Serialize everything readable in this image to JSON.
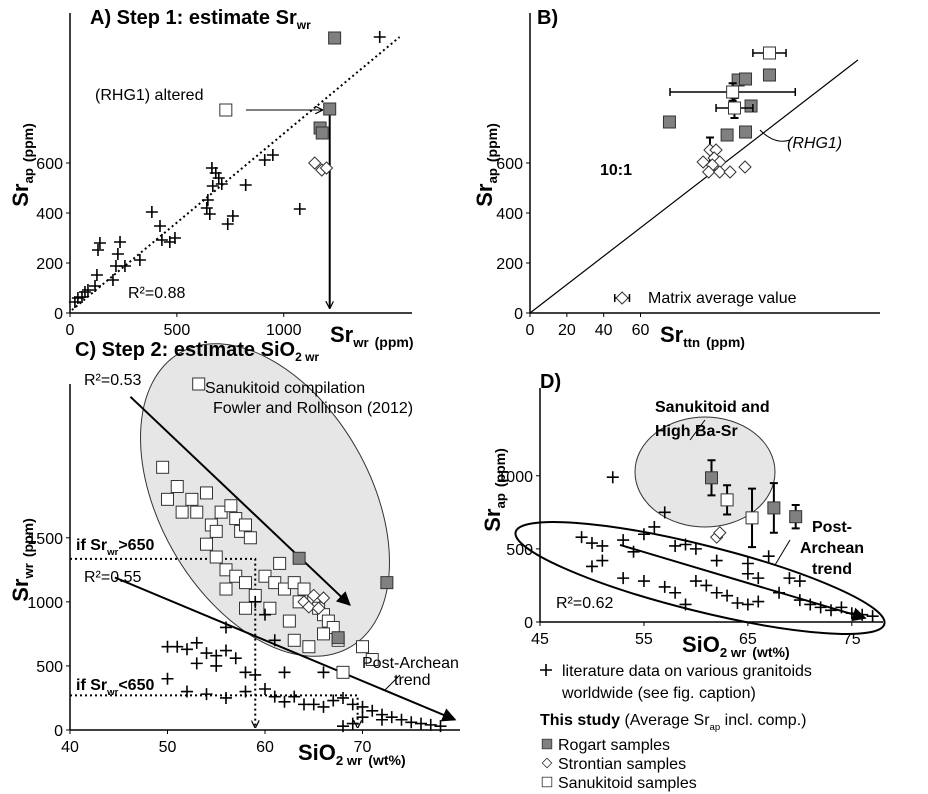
{
  "chart_data": [
    {
      "type": "scatter",
      "title": [
        "A) Step 1: estimate Sr",
        "wr"
      ],
      "xlabel": [
        "Sr",
        "wr"
      ],
      "xunit": "(ppm)",
      "ylabel": [
        "Sr",
        "ap"
      ],
      "yunit": "(ppm)",
      "xlim": [
        0,
        1600
      ],
      "ylim": [
        0,
        1200
      ],
      "xticks": [
        0,
        500,
        1000
      ],
      "yticks": [
        0,
        200,
        400,
        600
      ],
      "annotations": [
        [
          "(RHG1) altered"
        ],
        [
          "R²=0.88"
        ]
      ],
      "series": [
        {
          "marker": "cross",
          "color": "#000000",
          "x": [
            23,
            37,
            56,
            70,
            84,
            117,
            126,
            131,
            140,
            201,
            215,
            224,
            234,
            257,
            327,
            383,
            421,
            430,
            467,
            491,
            640,
            645,
            654,
            668,
            664,
            682,
            696,
            710,
            738,
            762,
            822,
            911,
            949,
            1075,
            1449
          ],
          "values": [
            44,
            60,
            64,
            84,
            92,
            108,
            152,
            252,
            280,
            132,
            188,
            236,
            284,
            188,
            212,
            404,
            348,
            292,
            284,
            300,
            420,
            452,
            396,
            508,
            580,
            560,
            540,
            516,
            356,
            388,
            512,
            612,
            632,
            416,
            1104
          ]
        },
        {
          "marker": "diamond",
          "color": "#ffffff",
          "x": [
            1145,
            1178,
            1200
          ],
          "values": [
            600,
            572,
            580
          ]
        },
        {
          "marker": "square",
          "color": "#ffffff",
          "x": [
            729
          ],
          "values": [
            812
          ]
        },
        {
          "marker": "square",
          "color": "#808080",
          "x": [
            1215,
            1238,
            1170,
            1180
          ],
          "values": [
            816,
            1100,
            740,
            720
          ]
        }
      ],
      "lines": [
        {
          "style": "dotted",
          "x": [
            9,
            1542
          ],
          "y": [
            12,
            1104
          ]
        },
        {
          "style": "solid",
          "arrow": "open",
          "x": [
            1215,
            1215
          ],
          "y": [
            816,
            20
          ]
        }
      ]
    },
    {
      "type": "scatter",
      "title": [
        "B)"
      ],
      "xlabel": [
        "Sr",
        "ttn"
      ],
      "xunit": "(ppm)",
      "ylabel": [
        "Sr",
        "ap"
      ],
      "yunit": "(ppm)",
      "xlim": [
        0,
        190
      ],
      "ylim": [
        0,
        1200
      ],
      "xticks": [
        0,
        20,
        40,
        60
      ],
      "yticks": [
        0,
        200,
        400,
        600
      ],
      "annotations": [
        [
          "10:1"
        ],
        [
          "(RHG1)"
        ],
        [
          "Matrix average value"
        ]
      ],
      "series": [
        {
          "marker": "square",
          "color": "#808080",
          "x": [
            75.7,
            113,
            117,
            130,
            120,
            107,
            117
          ],
          "values": [
            764,
            932,
            936,
            952,
            828,
            712,
            724
          ]
        },
        {
          "marker": "diamond",
          "color": "#ffffff",
          "x": [
            97.7,
            101,
            100,
            103,
            99,
            97,
            103,
            108.6,
            116.7,
            94
          ],
          "values": [
            652,
            652,
            620,
            604,
            592,
            564,
            564,
            564,
            584,
            604
          ],
          "yerr": [
            50,
            null,
            null,
            null,
            null,
            null,
            null,
            null,
            null,
            null
          ]
        },
        {
          "marker": "square",
          "color": "#ffffff",
          "x": [
            130,
            110,
            111
          ],
          "values": [
            1040,
            884,
            820
          ],
          "xerr": [
            9,
            34,
            10
          ],
          "yerr": [
            20,
            35,
            40
          ]
        },
        {
          "marker": "diamond",
          "color": "#ffffff",
          "x": [
            50
          ],
          "values": [
            60
          ],
          "xerr": [
            4
          ]
        }
      ],
      "lines": [
        {
          "style": "solid",
          "x": [
            0,
            178
          ],
          "y": [
            0,
            1012
          ]
        }
      ]
    },
    {
      "type": "scatter",
      "title": [
        "C) Step 2: estimate SiO",
        "2 wr"
      ],
      "xlabel": [
        "SiO",
        "2 wr"
      ],
      "xunit": "(wt%)",
      "ylabel": [
        "Sr",
        "wr"
      ],
      "yunit": "(ppm)",
      "xlim": [
        40,
        80
      ],
      "ylim": [
        0,
        2700
      ],
      "xticks": [
        40,
        50,
        60,
        70
      ],
      "yticks": [
        0,
        500,
        1000,
        1500
      ],
      "annotations": [
        [
          "R²=0.53"
        ],
        [
          "Sanukitoid compilation"
        ],
        [
          "Fowler and Rollinson (2012)"
        ],
        [
          "if Sr",
          "wr",
          ">650"
        ],
        [
          "R²=0.55"
        ],
        [
          "if Sr",
          "wr",
          "<650"
        ],
        [
          "Post-Archean"
        ],
        [
          "trend"
        ]
      ],
      "series": [
        {
          "marker": "square",
          "color": "#ffffff",
          "x": [
            53.2,
            49.5,
            50,
            51,
            51.5,
            52.5,
            53,
            54,
            54.5,
            55,
            55.5,
            56.5,
            57,
            57.5,
            58,
            58.5,
            54,
            55,
            56,
            56,
            57,
            58,
            58,
            59,
            60,
            61,
            61.5,
            62,
            63,
            63.5,
            64,
            65,
            65.5,
            66,
            66.5,
            67,
            66,
            67.5,
            62.5,
            63,
            60.5,
            64.5,
            70,
            71,
            68
          ],
          "values": [
            2700,
            2050,
            1800,
            1900,
            1700,
            1800,
            1700,
            1850,
            1600,
            1550,
            1700,
            1750,
            1650,
            1550,
            1600,
            1500,
            1450,
            1350,
            1250,
            1100,
            1200,
            1150,
            950,
            1050,
            1200,
            1150,
            1300,
            1100,
            1150,
            1000,
            1100,
            1000,
            950,
            900,
            850,
            800,
            750,
            700,
            850,
            700,
            950,
            650,
            650,
            550,
            450
          ]
        },
        {
          "marker": "cross",
          "color": "#000000",
          "x": [
            50,
            51,
            52,
            53,
            54,
            55,
            56,
            57,
            55,
            53,
            58,
            59,
            50,
            52,
            54,
            56,
            58,
            60,
            61,
            62,
            63,
            64,
            60,
            59,
            62,
            65,
            66,
            67,
            68,
            69,
            70,
            71,
            72,
            73,
            74,
            75,
            76,
            77,
            78,
            70,
            72,
            69,
            68,
            66,
            61,
            56
          ],
          "values": [
            650,
            650,
            630,
            680,
            600,
            580,
            620,
            560,
            500,
            520,
            450,
            430,
            400,
            300,
            280,
            250,
            300,
            320,
            260,
            220,
            260,
            200,
            900,
            1000,
            450,
            200,
            180,
            230,
            250,
            200,
            180,
            150,
            120,
            100,
            80,
            60,
            50,
            40,
            30,
            100,
            80,
            50,
            30,
            450,
            700,
            800
          ]
        },
        {
          "marker": "diamond",
          "color": "#ffffff",
          "x": [
            64,
            65,
            64.5,
            65.5,
            66
          ],
          "values": [
            1000,
            1050,
            960,
            950,
            1030
          ]
        },
        {
          "marker": "square",
          "color": "#808080",
          "x": [
            63.5,
            72.5,
            67.5
          ],
          "values": [
            1340,
            1150,
            720
          ]
        }
      ],
      "lines": [
        {
          "style": "solid",
          "arrow": "filled",
          "x": [
            46.2,
            68.7
          ],
          "y": [
            2600,
            976
          ]
        },
        {
          "style": "solid",
          "arrow": "filled",
          "x": [
            44.6,
            79.5
          ],
          "y": [
            1190,
            80
          ]
        },
        {
          "style": "dotted",
          "arrow": "open",
          "x": [
            40,
            59,
            59
          ],
          "y": [
            1335,
            1335,
            20
          ]
        },
        {
          "style": "dotted",
          "arrow": "open",
          "x": [
            40,
            69.5,
            69.5
          ],
          "y": [
            270,
            270,
            20
          ]
        }
      ]
    },
    {
      "type": "scatter",
      "title": [
        "D)"
      ],
      "xlabel": [
        "SiO",
        "2 wr"
      ],
      "xunit": "(wt%)",
      "ylabel": [
        "Sr",
        "ap"
      ],
      "yunit": "(ppm)",
      "xlim": [
        45,
        78
      ],
      "ylim": [
        0,
        1600
      ],
      "xticks": [
        45,
        55,
        65,
        75
      ],
      "yticks": [
        0,
        500,
        1000
      ],
      "annotations": [
        [
          "Sanukitoid and"
        ],
        [
          "High Ba-Sr"
        ],
        [
          "Post-"
        ],
        [
          "Archean"
        ],
        [
          "trend"
        ],
        [
          "R²=0.62"
        ]
      ],
      "series": [
        {
          "marker": "cross",
          "color": "#000000",
          "x": [
            52,
            50,
            49,
            51,
            53,
            54,
            55,
            56,
            57,
            58,
            59,
            60,
            50,
            51,
            53,
            55,
            57,
            58,
            60,
            61,
            62,
            63,
            65,
            65,
            66,
            65,
            66,
            67,
            68,
            69,
            70,
            70,
            71,
            72,
            73,
            74,
            75,
            76,
            77,
            59,
            62,
            64
          ],
          "values": [
            990,
            540,
            580,
            520,
            560,
            480,
            600,
            650,
            750,
            520,
            530,
            500,
            380,
            420,
            300,
            280,
            240,
            200,
            280,
            250,
            200,
            180,
            400,
            330,
            300,
            120,
            140,
            450,
            200,
            300,
            280,
            150,
            120,
            100,
            80,
            100,
            60,
            50,
            40,
            120,
            420,
            130
          ]
        },
        {
          "marker": "diamond",
          "color": "#ffffff",
          "x": [
            62,
            62.3
          ],
          "values": [
            580,
            610
          ]
        },
        {
          "marker": "square",
          "color": "#ffffff",
          "x": [
            63,
            65.4
          ],
          "values": [
            835,
            712
          ],
          "yerr": [
            100,
            200
          ]
        },
        {
          "marker": "square",
          "color": "#808080",
          "x": [
            61.5,
            67.5,
            69.6
          ],
          "values": [
            986,
            780,
            720
          ],
          "yerr": [
            120,
            170,
            80
          ]
        }
      ],
      "lines": [
        {
          "style": "solid",
          "arrow": "filled",
          "x": [
            52.7,
            76.3
          ],
          "y": [
            527,
            27
          ]
        }
      ]
    }
  ],
  "legend": {
    "cross_item": {
      "marker": "cross",
      "color": "#000000",
      "text": [
        "literature data on various granitoids",
        "worldwide (see fig. caption)"
      ]
    },
    "heading": "This study",
    "heading_note": [
      " (Average Sr",
      "ap",
      " incl. comp.)"
    ],
    "items": [
      {
        "marker": "square",
        "color": "#808080",
        "text": "Rogart samples"
      },
      {
        "marker": "diamond",
        "color": "#ffffff",
        "text": "Strontian samples"
      },
      {
        "marker": "square",
        "color": "#ffffff",
        "text": "Sanukitoid samples"
      }
    ]
  }
}
